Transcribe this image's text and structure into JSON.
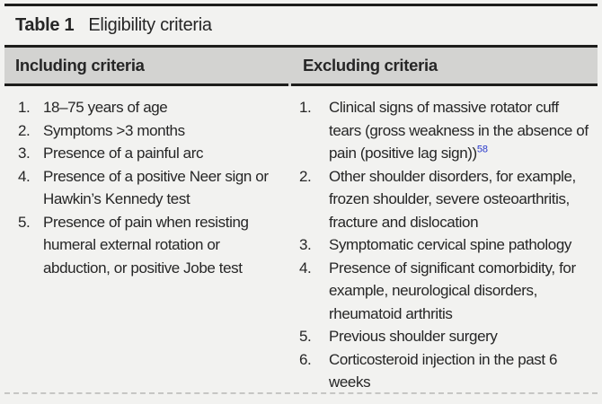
{
  "colors": {
    "accent_reference_blue": "#2939cb",
    "header_band_gray": "#d3d3d1",
    "rule_black": "#1d1d1b",
    "page_background": "#f2f2f0",
    "bottom_rule_gray": "#c6c6c4"
  },
  "table": {
    "caption_label": "Table 1",
    "caption_title": "Eligibility criteria",
    "columns": [
      {
        "header": "Including criteria",
        "items": [
          {
            "num": "1.",
            "text": "18–75 years of age"
          },
          {
            "num": "2.",
            "text": "Symptoms >3 months"
          },
          {
            "num": "3.",
            "text": "Presence of a painful arc"
          },
          {
            "num": "4.",
            "text": "Presence of a positive Neer sign or Hawkin’s Kennedy test"
          },
          {
            "num": "5.",
            "text": "Presence of pain when resisting humeral external rotation or abduction, or positive Jobe test"
          }
        ]
      },
      {
        "header": "Excluding criteria",
        "items": [
          {
            "num": "1.",
            "text": "Clinical signs of massive rotator cuff tears (gross weakness in the absence of pain (positive lag sign))",
            "ref": "58"
          },
          {
            "num": "2.",
            "text": "Other shoulder disorders, for example, frozen shoulder, severe osteoarthritis, fracture and dislocation"
          },
          {
            "num": "3.",
            "text": "Symptomatic cervical spine pathology"
          },
          {
            "num": "4.",
            "text": "Presence of significant comorbidity, for example, neurological disorders, rheumatoid arthritis"
          },
          {
            "num": "5.",
            "text": "Previous shoulder surgery"
          },
          {
            "num": "6.",
            "text": "Corticosteroid injection in the past 6 weeks"
          }
        ]
      }
    ]
  }
}
